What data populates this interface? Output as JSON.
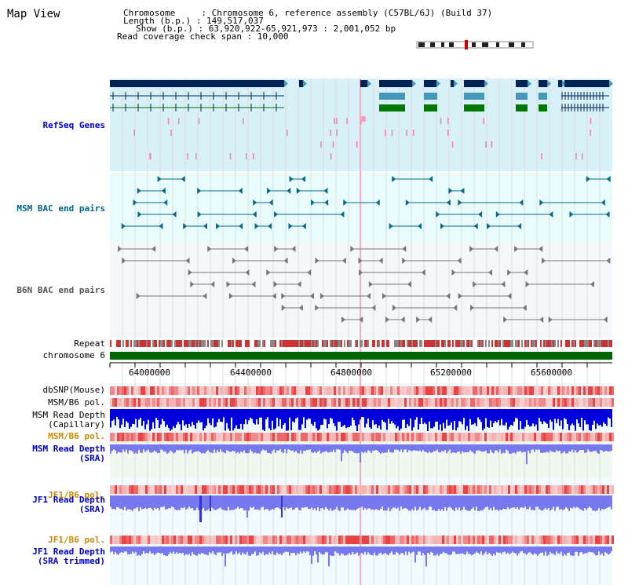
{
  "view": {
    "title": "Map View",
    "header_lines": [
      "Chromosome     : Chromosome 6, reference assembly (C57BL/6J) (Build 37)",
      "Length (b.p.) : 149,517,037",
      "Show (b.p.) : 63,920,922-65,921,973 : 2,001,052 bp",
      "Read coverage check span : 10,000"
    ]
  },
  "tracks": {
    "refseq": "RefSeq Genes",
    "msm_bac": "MSM BAC end pairs",
    "b6n_bac": "B6N BAC end pairs",
    "repeat": "Repeat",
    "chromosome": "chromosome 6",
    "dbsnp": "dbSNP(Mouse)",
    "msm_b6_pol_1": "MSM/B6 pol.",
    "msm_read_depth_cap_1": "MSM Read Depth",
    "msm_read_depth_cap_2": "(Capillary)",
    "msm_b6_pol_2": "MSM/B6 pol.",
    "msm_read_depth_sra_1": "MSM Read Depth",
    "msm_read_depth_sra_2": "(SRA)",
    "jf1_b6_pol_1": "JF1/B6 pol.",
    "jf1_read_depth_sra_1": "JF1 Read Depth",
    "jf1_read_depth_sra_2": "(SRA)",
    "jf1_b6_pol_2": "JF1/B6 pol.",
    "jf1_read_depth_trim_1": "JF1 Read Depth",
    "jf1_read_depth_trim_2": "(SRA trimmed)"
  },
  "axis": {
    "ticks": [
      "64000000",
      "64400000",
      "64800000",
      "65200000",
      "65600000"
    ]
  },
  "colors": {
    "refseq_bg": "#d8f0f8",
    "bac_bg": "#e8fcfc",
    "gene_dark": "#002255",
    "gene_mid": "#4499bb",
    "gene_green": "#007700",
    "chrom_green": "#006600",
    "read_depth_blue": "#0000dd",
    "sra_blue": "#7777ee"
  }
}
